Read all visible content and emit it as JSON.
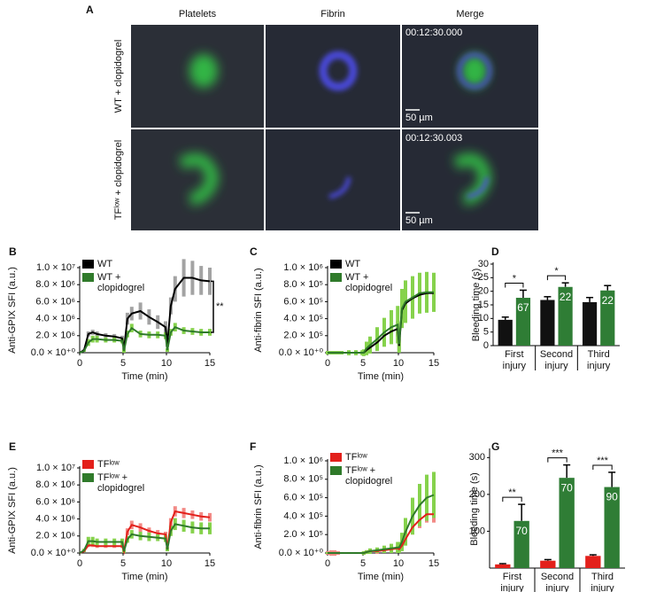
{
  "panel_a": {
    "label": "A",
    "columns": [
      "Platelets",
      "Fibrin",
      "Merge"
    ],
    "rows": [
      {
        "label": "WT + clopidogrel",
        "timestamp": "00:12:30.000",
        "scale_bar": "50 µm"
      },
      {
        "label": "TFˡᵒʷ + clopidogrel",
        "timestamp": "00:12:30.003",
        "scale_bar": "50 µm"
      }
    ]
  },
  "chart_data": [
    {
      "type": "line",
      "panel": "B",
      "ylabel": "Anti-GPIX SFI (a.u.)",
      "xlabel": "Time (min)",
      "x": [
        0,
        0.5,
        1,
        1.5,
        2,
        3,
        4,
        4.9,
        5.1,
        5.5,
        6,
        7,
        8,
        9,
        9.9,
        10.1,
        10.5,
        11,
        12,
        13,
        14,
        15
      ],
      "xlim": [
        0,
        15
      ],
      "xticks": [
        0,
        5,
        10,
        15
      ],
      "ylim": [
        0,
        10000000
      ],
      "yticks": [
        {
          "value": 0,
          "label": "0.0 × 10⁺⁰"
        },
        {
          "value": 2000000,
          "label": "2.0 × 10⁶"
        },
        {
          "value": 4000000,
          "label": "4.0 × 10⁶"
        },
        {
          "value": 6000000,
          "label": "6.0 × 10⁶"
        },
        {
          "value": 8000000,
          "label": "8.0 × 10⁶"
        },
        {
          "value": 10000000,
          "label": "1.0 × 10⁷"
        }
      ],
      "significance": "**",
      "series": [
        {
          "name": "WT",
          "color": "#000000",
          "band_color": "#a3a3a3",
          "values": [
            0,
            300000,
            2200000,
            2400000,
            2200000,
            2000000,
            1900000,
            1700000,
            400000,
            4000000,
            4600000,
            4900000,
            4200000,
            3600000,
            3000000,
            1000000,
            5500000,
            7500000,
            8800000,
            8800000,
            8500000,
            8400000
          ],
          "error": [
            0,
            100000,
            300000,
            300000,
            300000,
            300000,
            300000,
            300000,
            200000,
            700000,
            800000,
            1000000,
            900000,
            800000,
            700000,
            300000,
            1000000,
            1500000,
            2200000,
            2000000,
            1700000,
            1600000
          ]
        },
        {
          "name": "WT + clopidogrel",
          "color": "#2f7a2a",
          "band_color": "#86d24c",
          "values": [
            0,
            200000,
            1200000,
            1600000,
            1600000,
            1500000,
            1500000,
            1400000,
            200000,
            2200000,
            2900000,
            2200000,
            2100000,
            2100000,
            2000000,
            300000,
            2400000,
            3000000,
            2600000,
            2500000,
            2400000,
            2400000
          ],
          "error": [
            0,
            100000,
            400000,
            400000,
            400000,
            300000,
            300000,
            300000,
            200000,
            400000,
            500000,
            400000,
            400000,
            400000,
            400000,
            200000,
            400000,
            500000,
            400000,
            400000,
            400000,
            400000
          ]
        }
      ]
    },
    {
      "type": "line",
      "panel": "C",
      "ylabel": "Anti-fibrin SFI (a.u.)",
      "xlabel": "Time (min)",
      "x": [
        0,
        0.5,
        1,
        1.5,
        2,
        3,
        4,
        4.9,
        5.1,
        5.5,
        6,
        7,
        8,
        9,
        9.9,
        10.1,
        10.5,
        11,
        12,
        13,
        14,
        15
      ],
      "xlim": [
        0,
        15
      ],
      "xticks": [
        0,
        5,
        10,
        15
      ],
      "ylim": [
        0,
        1000000
      ],
      "yticks": [
        {
          "value": 0,
          "label": "0.0 × 10⁺⁰"
        },
        {
          "value": 200000,
          "label": "2.0 × 10⁵"
        },
        {
          "value": 400000,
          "label": "4.0 × 10⁵"
        },
        {
          "value": 600000,
          "label": "6.0 × 10⁵"
        },
        {
          "value": 800000,
          "label": "8.0 × 10⁵"
        },
        {
          "value": 1000000,
          "label": "1.0 × 10⁶"
        }
      ],
      "series": [
        {
          "name": "WT",
          "color": "#000000",
          "band_color": "#a3a3a3",
          "values": [
            0,
            0,
            0,
            0,
            0,
            0,
            0,
            0,
            0,
            30000,
            60000,
            120000,
            200000,
            250000,
            280000,
            80000,
            500000,
            580000,
            640000,
            680000,
            700000,
            700000
          ],
          "error": [
            20000,
            20000,
            20000,
            20000,
            20000,
            20000,
            20000,
            20000,
            30000,
            40000,
            50000,
            70000,
            80000,
            90000,
            90000,
            50000,
            130000,
            150000,
            160000,
            160000,
            160000,
            160000
          ]
        },
        {
          "name": "WT + clopidogrel",
          "color": "#2f7a2a",
          "band_color": "#86d24c",
          "values": [
            0,
            0,
            0,
            0,
            0,
            0,
            0,
            0,
            0,
            50000,
            90000,
            160000,
            240000,
            300000,
            330000,
            100000,
            520000,
            600000,
            650000,
            700000,
            710000,
            710000
          ],
          "error": [
            20000,
            20000,
            20000,
            20000,
            20000,
            30000,
            30000,
            30000,
            40000,
            80000,
            100000,
            140000,
            170000,
            200000,
            220000,
            100000,
            230000,
            250000,
            250000,
            240000,
            240000,
            230000
          ]
        }
      ]
    },
    {
      "type": "bar",
      "panel": "D",
      "ylabel": "Bleeding time (s)",
      "categories": [
        "First injury",
        "Second injury",
        "Third injury"
      ],
      "ylim": [
        0,
        30
      ],
      "yticks": [
        0,
        5,
        10,
        15,
        20,
        25,
        30
      ],
      "significance": [
        "*",
        "*",
        null
      ],
      "series": [
        {
          "name": "WT",
          "color": "#111111",
          "values": [
            9.5,
            16.8,
            16.0
          ],
          "error": [
            1.0,
            1.2,
            1.7
          ]
        },
        {
          "name": "WT + clopidogrel",
          "color": "#2f7d35",
          "values": [
            17.6,
            21.6,
            20.3
          ],
          "error": [
            2.8,
            1.5,
            1.8
          ],
          "n_labels": [
            "67",
            "22",
            "22"
          ]
        }
      ]
    },
    {
      "type": "line",
      "panel": "E",
      "ylabel": "Anti-GPIX SFI (a.u.)",
      "xlabel": "Time (min)",
      "x": [
        0,
        0.5,
        1,
        1.5,
        2,
        3,
        4,
        4.9,
        5.1,
        5.5,
        6,
        7,
        8,
        9,
        9.9,
        10.1,
        10.5,
        11,
        12,
        13,
        14,
        15
      ],
      "xlim": [
        0,
        15
      ],
      "xticks": [
        0,
        5,
        10,
        15
      ],
      "ylim": [
        0,
        10000000
      ],
      "yticks": [
        {
          "value": 0,
          "label": "0.0 × 10⁺⁰"
        },
        {
          "value": 2000000,
          "label": "2.0 × 10⁶"
        },
        {
          "value": 4000000,
          "label": "4.0 × 10⁶"
        },
        {
          "value": 6000000,
          "label": "6.0 × 10⁶"
        },
        {
          "value": 8000000,
          "label": "8.0 × 10⁶"
        },
        {
          "value": 10000000,
          "label": "1.0 × 10⁷"
        }
      ],
      "series": [
        {
          "name": "TFˡᵒʷ",
          "color": "#e3201b",
          "band_color": "#f28a86",
          "values": [
            0,
            200000,
            900000,
            900000,
            800000,
            800000,
            800000,
            800000,
            200000,
            2500000,
            3300000,
            3000000,
            2600000,
            2300000,
            2200000,
            500000,
            3600000,
            4900000,
            4700000,
            4500000,
            4300000,
            4200000
          ],
          "error": [
            0,
            100000,
            200000,
            200000,
            200000,
            200000,
            200000,
            200000,
            100000,
            400000,
            500000,
            500000,
            400000,
            400000,
            300000,
            200000,
            500000,
            600000,
            600000,
            500000,
            500000,
            500000
          ]
        },
        {
          "name": "TFˡᵒʷ + clopidogrel",
          "color": "#2f7a2a",
          "band_color": "#86d24c",
          "values": [
            0,
            300000,
            1400000,
            1400000,
            1300000,
            1300000,
            1300000,
            1300000,
            200000,
            1600000,
            2200000,
            2000000,
            1900000,
            1800000,
            1700000,
            400000,
            2600000,
            3400000,
            3200000,
            3000000,
            2900000,
            2900000
          ],
          "error": [
            0,
            200000,
            500000,
            500000,
            400000,
            400000,
            400000,
            400000,
            200000,
            400000,
            500000,
            500000,
            500000,
            400000,
            400000,
            200000,
            600000,
            700000,
            700000,
            700000,
            700000,
            700000
          ]
        }
      ]
    },
    {
      "type": "line",
      "panel": "F",
      "ylabel": "Anti-fibrin SFI (a.u.)",
      "xlabel": "Time (min)",
      "x": [
        0,
        0.5,
        1,
        1.5,
        2,
        3,
        4,
        4.9,
        5.1,
        5.5,
        6,
        7,
        8,
        9,
        9.9,
        10.1,
        10.5,
        11,
        12,
        13,
        14,
        15
      ],
      "xlim": [
        0,
        15
      ],
      "xticks": [
        0,
        5,
        10,
        15
      ],
      "ylim": [
        0,
        1000000
      ],
      "yticks": [
        {
          "value": 0,
          "label": "0.0 × 10⁺⁰"
        },
        {
          "value": 200000,
          "label": "2.0 × 10⁵"
        },
        {
          "value": 400000,
          "label": "4.0 × 10⁵"
        },
        {
          "value": 600000,
          "label": "6.0 × 10⁵"
        },
        {
          "value": 800000,
          "label": "8.0 × 10⁵"
        },
        {
          "value": 1000000,
          "label": "1.0 × 10⁶"
        }
      ],
      "series": [
        {
          "name": "TFˡᵒʷ",
          "color": "#e3201b",
          "band_color": "#f28a86",
          "values": [
            0,
            0,
            0,
            0,
            0,
            0,
            0,
            0,
            0,
            10000,
            20000,
            20000,
            30000,
            40000,
            50000,
            40000,
            80000,
            150000,
            280000,
            360000,
            420000,
            420000
          ],
          "error": [
            20000,
            30000,
            30000,
            20000,
            10000,
            10000,
            10000,
            10000,
            20000,
            20000,
            20000,
            30000,
            30000,
            30000,
            40000,
            30000,
            40000,
            60000,
            80000,
            90000,
            90000,
            90000
          ]
        },
        {
          "name": "TFˡᵒʷ + clopidogrel",
          "color": "#2f7a2a",
          "band_color": "#86d24c",
          "values": [
            0,
            0,
            0,
            0,
            0,
            0,
            0,
            0,
            0,
            10000,
            20000,
            30000,
            40000,
            50000,
            60000,
            60000,
            120000,
            230000,
            400000,
            520000,
            600000,
            630000
          ],
          "error": [
            10000,
            10000,
            10000,
            10000,
            10000,
            10000,
            10000,
            10000,
            20000,
            20000,
            30000,
            30000,
            40000,
            50000,
            60000,
            60000,
            100000,
            150000,
            200000,
            230000,
            250000,
            250000
          ]
        }
      ]
    },
    {
      "type": "bar",
      "panel": "G",
      "ylabel": "Bleeding time (s)",
      "categories": [
        "First injury",
        "Second injury",
        "Third injury"
      ],
      "ylim": [
        0,
        320
      ],
      "yticks": [
        100,
        200,
        300
      ],
      "significance": [
        "**",
        "***",
        "***"
      ],
      "series": [
        {
          "name": "TFˡᵒʷ",
          "color": "#e3201b",
          "values": [
            10,
            20,
            33
          ],
          "error": [
            2,
            3,
            3
          ]
        },
        {
          "name": "TFˡᵒʷ + clopidogrel",
          "color": "#2f7d35",
          "values": [
            128,
            245,
            220
          ],
          "error": [
            45,
            35,
            40
          ],
          "n_labels": [
            "70",
            "70",
            "90"
          ]
        }
      ]
    }
  ]
}
